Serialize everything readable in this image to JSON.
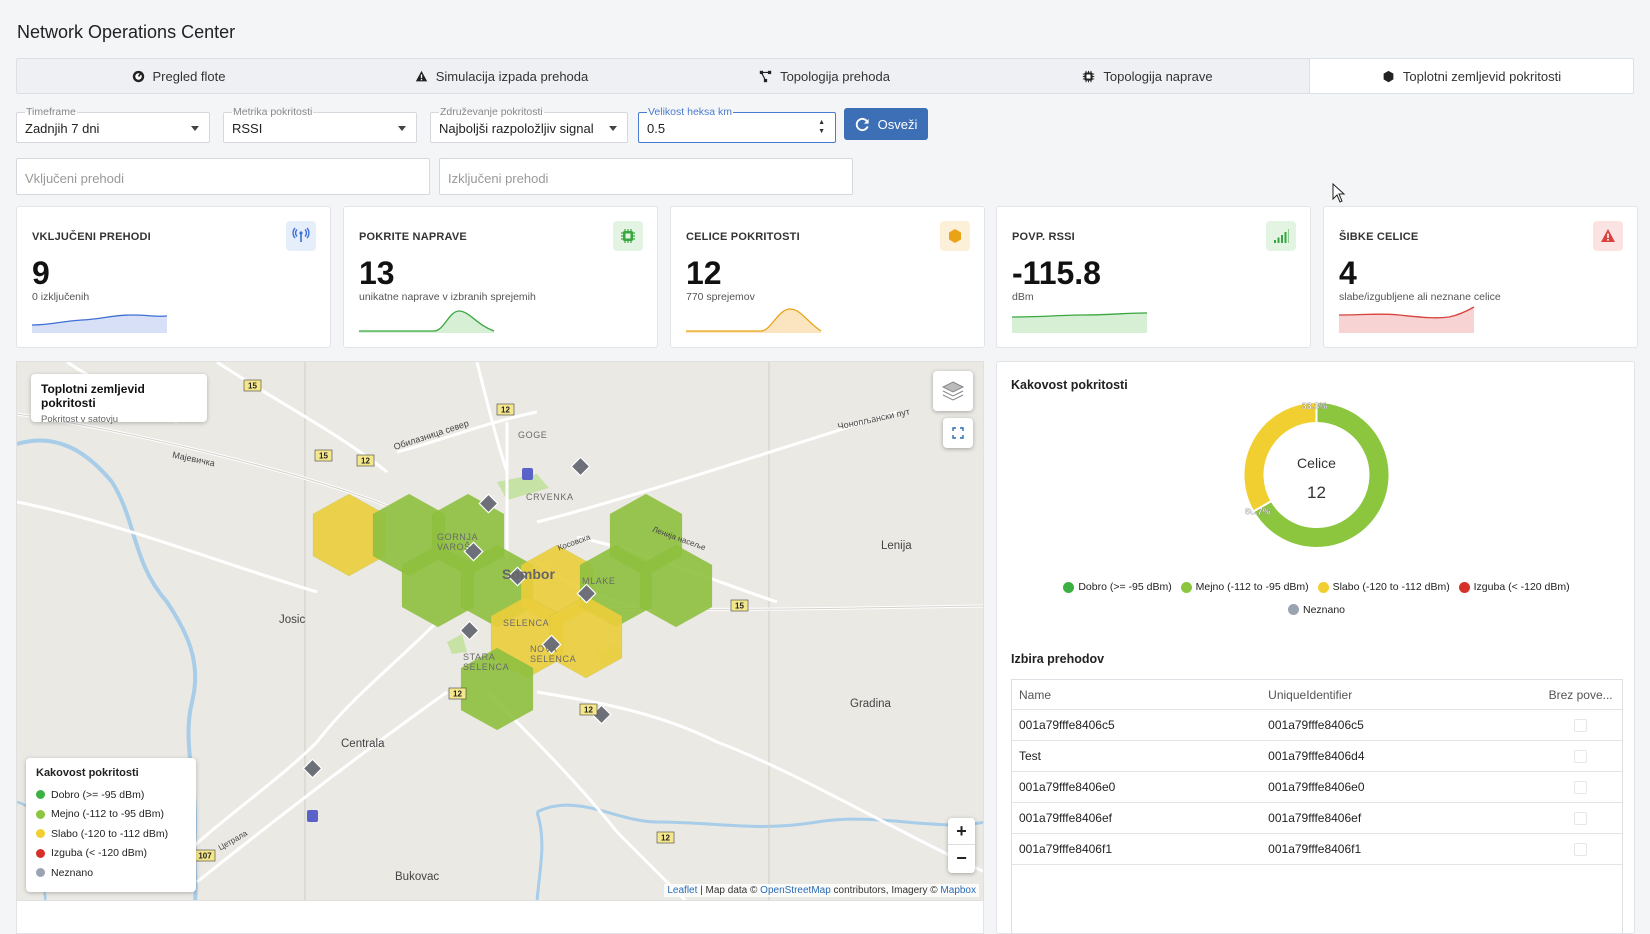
{
  "app": {
    "title": "Network Operations Center"
  },
  "tabs": [
    {
      "label": "Pregled flote",
      "icon": "gauge-icon",
      "active": false
    },
    {
      "label": "Simulacija izpada prehoda",
      "icon": "warning-icon",
      "active": false
    },
    {
      "label": "Topologija prehoda",
      "icon": "topology-icon",
      "active": false
    },
    {
      "label": "Topologija naprave",
      "icon": "chip-icon",
      "active": false
    },
    {
      "label": "Toplotni zemljevid pokritosti",
      "icon": "hexagon-icon",
      "active": true
    }
  ],
  "filters": {
    "timeframe": {
      "label": "Timeframe",
      "value": "Zadnjih 7 dni"
    },
    "metric": {
      "label": "Metrika pokritosti",
      "value": "RSSI"
    },
    "aggregation": {
      "label": "Združevanje pokritosti",
      "value": "Najboljši razpoložljiv signal"
    },
    "hex_size": {
      "label": "Velikost heksa km",
      "value": "0.5"
    },
    "refresh_label": "Osveži",
    "included_placeholder": "Vključeni prehodi",
    "excluded_placeholder": "Izključeni prehodi"
  },
  "kpis": [
    {
      "title": "VKLJUČENI PREHODI",
      "value": "9",
      "sub": "0 izključenih",
      "icon": "antenna-icon",
      "color": "#3d6fd6",
      "bg": "#e6eefc"
    },
    {
      "title": "POKRITE NAPRAVE",
      "value": "13",
      "sub": "unikatne naprave v izbranih sprejemih",
      "icon": "chip-icon",
      "color": "#3aa640",
      "bg": "#e3f4e3"
    },
    {
      "title": "CELICE POKRITOSTI",
      "value": "12",
      "sub": "770 sprejemov",
      "icon": "hexagon-icon",
      "color": "#e8a317",
      "bg": "#fcf1d8"
    },
    {
      "title": "POVP. RSSI",
      "value": "-115.8",
      "sub": "dBm",
      "icon": "signal-icon",
      "color": "#3aa640",
      "bg": "#e3f4e3"
    },
    {
      "title": "ŠIBKE CELICE",
      "value": "4",
      "sub": "slabe/izgubljene ali neznane celice",
      "icon": "warning-icon",
      "color": "#d9413d",
      "bg": "#fbe3e3"
    }
  ],
  "map": {
    "card_title": "Toplotni zemljevid pokritosti",
    "card_subtitle": "Pokritost v satovju",
    "places": [
      "Sombor",
      "GOGE",
      "CRVENKA",
      "GORNJA VAROŠ",
      "MLAKE",
      "SELENCA",
      "STARA SELENCA",
      "NOVA SELENCA",
      "Josic",
      "Lenija",
      "Gradina",
      "Centrala",
      "Bukovac"
    ],
    "road_labels": [
      "Мајевичка",
      "Обилазница север",
      "Чонопљански пут",
      "Косовска",
      "Ленија насеље",
      "Цетрала",
      "15",
      "12",
      "107"
    ],
    "legend_title": "Kakovost pokritosti",
    "legend": [
      {
        "label": "Dobro (>= -95 dBm)",
        "color": "#3cb043"
      },
      {
        "label": "Mejno (-112 to -95 dBm)",
        "color": "#8cc63f"
      },
      {
        "label": "Slabo (-120 to -112 dBm)",
        "color": "#f2cf30"
      },
      {
        "label": "Izguba (< -120 dBm)",
        "color": "#d7302a"
      },
      {
        "label": "Neznano",
        "color": "#9aa3b2"
      }
    ],
    "attribution": {
      "leaflet": "Leaflet",
      "mid": " | Map data © ",
      "osm": "OpenStreetMap",
      "mid2": " contributors, Imagery © ",
      "mapbox": "Mapbox"
    },
    "zoom_in": "+",
    "zoom_out": "−"
  },
  "quality": {
    "title": "Kakovost pokritosti",
    "center_label": "Celice",
    "center_value": "12",
    "chart_data": {
      "type": "pie",
      "categories": [
        "Dobro (>= -95 dBm)",
        "Mejno (-112 to -95 dBm)",
        "Slabo (-120 to -112 dBm)",
        "Izguba (< -120 dBm)",
        "Neznano"
      ],
      "values": [
        0,
        8,
        4,
        0,
        0
      ],
      "labels": [
        "",
        "66.7%",
        "33.3%",
        "",
        ""
      ],
      "colors": [
        "#3cb043",
        "#8cc63f",
        "#f2cf30",
        "#d7302a",
        "#9aa3b2"
      ],
      "legend_position": "bottom"
    }
  },
  "gateways": {
    "title": "Izbira prehodov",
    "columns": [
      "Name",
      "UniqueIdentifier",
      "Brez pove..."
    ],
    "rows": [
      {
        "name": "001a79fffe8406c5",
        "uid": "001a79fffe8406c5"
      },
      {
        "name": "Test",
        "uid": "001a79fffe8406d4"
      },
      {
        "name": "001a79fffe8406e0",
        "uid": "001a79fffe8406e0"
      },
      {
        "name": "001a79fffe8406ef",
        "uid": "001a79fffe8406ef"
      },
      {
        "name": "001a79fffe8406f1",
        "uid": "001a79fffe8406f1"
      }
    ]
  }
}
